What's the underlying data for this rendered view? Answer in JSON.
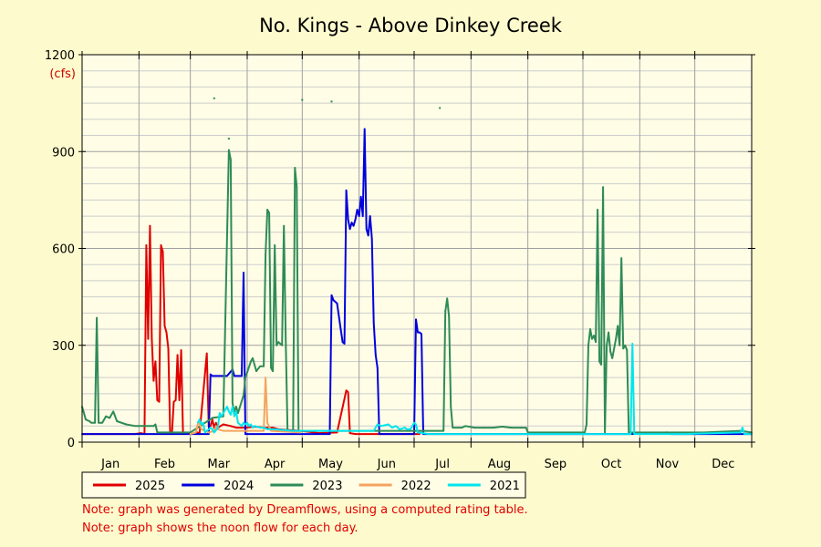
{
  "chart_data": {
    "type": "line",
    "title": "No. Kings - Above Dinkey Creek",
    "ylabel": "(cfs)",
    "xlabel": "",
    "x_unit": "day of year",
    "xlim": [
      1,
      366
    ],
    "ylim": [
      0,
      1200
    ],
    "y_ticks": [
      0,
      300,
      600,
      900,
      1200
    ],
    "month_labels": [
      "Jan",
      "Feb",
      "Mar",
      "Apr",
      "May",
      "Jun",
      "Jul",
      "Aug",
      "Sep",
      "Oct",
      "Nov",
      "Dec"
    ],
    "month_starts": [
      1,
      32,
      60,
      91,
      121,
      152,
      182,
      213,
      244,
      274,
      305,
      335
    ],
    "grid": true,
    "legend_position": "bottom-left",
    "series": [
      {
        "name": "2025",
        "color": "#e00000",
        "points": [
          [
            1,
            25
          ],
          [
            30,
            25
          ],
          [
            33,
            28
          ],
          [
            35,
            25
          ],
          [
            36,
            610
          ],
          [
            37,
            320
          ],
          [
            38,
            670
          ],
          [
            39,
            320
          ],
          [
            40,
            190
          ],
          [
            41,
            250
          ],
          [
            42,
            130
          ],
          [
            43,
            125
          ],
          [
            44,
            610
          ],
          [
            45,
            590
          ],
          [
            46,
            360
          ],
          [
            47,
            340
          ],
          [
            48,
            290
          ],
          [
            49,
            30
          ],
          [
            50,
            28
          ],
          [
            51,
            125
          ],
          [
            52,
            130
          ],
          [
            53,
            270
          ],
          [
            54,
            130
          ],
          [
            55,
            285
          ],
          [
            56,
            30
          ],
          [
            57,
            28
          ],
          [
            60,
            25
          ],
          [
            64,
            30
          ],
          [
            65,
            25
          ],
          [
            69,
            275
          ],
          [
            70,
            50
          ],
          [
            71,
            50
          ],
          [
            72,
            70
          ],
          [
            73,
            45
          ],
          [
            74,
            60
          ],
          [
            75,
            45
          ],
          [
            78,
            55
          ],
          [
            82,
            50
          ],
          [
            85,
            45
          ],
          [
            90,
            45
          ],
          [
            95,
            48
          ],
          [
            100,
            45
          ],
          [
            105,
            45
          ],
          [
            108,
            40
          ],
          [
            112,
            38
          ],
          [
            120,
            35
          ],
          [
            125,
            32
          ],
          [
            130,
            28
          ],
          [
            140,
            30
          ],
          [
            145,
            160
          ],
          [
            146,
            155
          ],
          [
            147,
            28
          ],
          [
            150,
            25
          ],
          [
            170,
            25
          ],
          [
            182,
            25
          ],
          [
            185,
            25
          ]
        ]
      },
      {
        "name": "2024",
        "color": "#0000dd",
        "points": [
          [
            1,
            25
          ],
          [
            40,
            25
          ],
          [
            50,
            25
          ],
          [
            60,
            25
          ],
          [
            70,
            25
          ],
          [
            71,
            210
          ],
          [
            72,
            205
          ],
          [
            80,
            205
          ],
          [
            83,
            225
          ],
          [
            84,
            205
          ],
          [
            88,
            205
          ],
          [
            89,
            525
          ],
          [
            90,
            25
          ],
          [
            100,
            25
          ],
          [
            120,
            25
          ],
          [
            136,
            25
          ],
          [
            137,
            455
          ],
          [
            138,
            440
          ],
          [
            140,
            430
          ],
          [
            142,
            350
          ],
          [
            143,
            310
          ],
          [
            144,
            305
          ],
          [
            145,
            780
          ],
          [
            146,
            690
          ],
          [
            147,
            660
          ],
          [
            148,
            680
          ],
          [
            149,
            670
          ],
          [
            150,
            690
          ],
          [
            151,
            720
          ],
          [
            152,
            700
          ],
          [
            153,
            760
          ],
          [
            154,
            700
          ],
          [
            155,
            970
          ],
          [
            156,
            660
          ],
          [
            157,
            640
          ],
          [
            158,
            700
          ],
          [
            159,
            630
          ],
          [
            160,
            370
          ],
          [
            161,
            270
          ],
          [
            162,
            230
          ],
          [
            163,
            25
          ],
          [
            175,
            25
          ],
          [
            182,
            25
          ],
          [
            183,
            380
          ],
          [
            184,
            340
          ],
          [
            185,
            340
          ],
          [
            186,
            335
          ],
          [
            187,
            25
          ],
          [
            200,
            25
          ],
          [
            240,
            25
          ],
          [
            260,
            25
          ],
          [
            300,
            25
          ],
          [
            320,
            30
          ],
          [
            322,
            25
          ],
          [
            340,
            25
          ],
          [
            366,
            25
          ]
        ]
      },
      {
        "name": "2023",
        "color": "#2e8b57",
        "points": [
          [
            1,
            110
          ],
          [
            3,
            70
          ],
          [
            5,
            65
          ],
          [
            6,
            60
          ],
          [
            8,
            60
          ],
          [
            9,
            385
          ],
          [
            10,
            60
          ],
          [
            12,
            60
          ],
          [
            14,
            80
          ],
          [
            16,
            75
          ],
          [
            18,
            95
          ],
          [
            20,
            65
          ],
          [
            25,
            55
          ],
          [
            30,
            50
          ],
          [
            40,
            50
          ],
          [
            41,
            55
          ],
          [
            42,
            30
          ],
          [
            60,
            30
          ],
          [
            72,
            75
          ],
          [
            78,
            80
          ],
          [
            81,
            905
          ],
          [
            82,
            875
          ],
          [
            83,
            120
          ],
          [
            84,
            95
          ],
          [
            85,
            110
          ],
          [
            86,
            90
          ],
          [
            89,
            145
          ],
          [
            90,
            200
          ],
          [
            93,
            250
          ],
          [
            94,
            260
          ],
          [
            96,
            220
          ],
          [
            98,
            235
          ],
          [
            100,
            235
          ],
          [
            101,
            580
          ],
          [
            102,
            720
          ],
          [
            103,
            710
          ],
          [
            104,
            230
          ],
          [
            105,
            220
          ],
          [
            106,
            610
          ],
          [
            107,
            300
          ],
          [
            108,
            310
          ],
          [
            110,
            300
          ],
          [
            111,
            670
          ],
          [
            112,
            320
          ],
          [
            113,
            35
          ],
          [
            116,
            35
          ],
          [
            117,
            850
          ],
          [
            118,
            790
          ],
          [
            119,
            35
          ],
          [
            130,
            35
          ],
          [
            170,
            35
          ],
          [
            185,
            35
          ],
          [
            198,
            35
          ],
          [
            199,
            405
          ],
          [
            200,
            445
          ],
          [
            201,
            390
          ],
          [
            202,
            110
          ],
          [
            203,
            45
          ],
          [
            208,
            45
          ],
          [
            210,
            50
          ],
          [
            215,
            45
          ],
          [
            220,
            45
          ],
          [
            225,
            45
          ],
          [
            230,
            48
          ],
          [
            235,
            45
          ],
          [
            240,
            45
          ],
          [
            243,
            45
          ],
          [
            244,
            30
          ],
          [
            260,
            30
          ],
          [
            275,
            30
          ],
          [
            276,
            55
          ],
          [
            277,
            300
          ],
          [
            278,
            350
          ],
          [
            279,
            320
          ],
          [
            280,
            330
          ],
          [
            281,
            310
          ],
          [
            282,
            720
          ],
          [
            283,
            250
          ],
          [
            284,
            240
          ],
          [
            285,
            790
          ],
          [
            286,
            30
          ],
          [
            287,
            300
          ],
          [
            288,
            340
          ],
          [
            289,
            280
          ],
          [
            290,
            260
          ],
          [
            292,
            320
          ],
          [
            293,
            360
          ],
          [
            294,
            300
          ],
          [
            295,
            570
          ],
          [
            296,
            290
          ],
          [
            297,
            300
          ],
          [
            298,
            285
          ],
          [
            299,
            30
          ],
          [
            310,
            30
          ],
          [
            340,
            30
          ],
          [
            360,
            35
          ],
          [
            366,
            30
          ]
        ]
      },
      {
        "name": "2022",
        "color": "#f4a460",
        "points": [
          [
            60,
            25
          ],
          [
            63,
            30
          ],
          [
            64,
            55
          ],
          [
            65,
            60
          ],
          [
            66,
            40
          ],
          [
            70,
            30
          ],
          [
            73,
            35
          ],
          [
            74,
            50
          ],
          [
            75,
            40
          ],
          [
            78,
            35
          ],
          [
            100,
            35
          ],
          [
            101,
            200
          ],
          [
            102,
            60
          ],
          [
            104,
            35
          ],
          [
            120,
            30
          ]
        ]
      },
      {
        "name": "2021",
        "color": "#00e5ee",
        "points": [
          [
            64,
            60
          ],
          [
            65,
            70
          ],
          [
            66,
            55
          ],
          [
            67,
            60
          ],
          [
            68,
            30
          ],
          [
            71,
            45
          ],
          [
            72,
            40
          ],
          [
            73,
            30
          ],
          [
            75,
            45
          ],
          [
            76,
            90
          ],
          [
            77,
            80
          ],
          [
            78,
            90
          ],
          [
            79,
            100
          ],
          [
            80,
            110
          ],
          [
            81,
            95
          ],
          [
            82,
            85
          ],
          [
            83,
            110
          ],
          [
            84,
            80
          ],
          [
            85,
            95
          ],
          [
            86,
            60
          ],
          [
            87,
            55
          ],
          [
            88,
            50
          ],
          [
            89,
            60
          ],
          [
            90,
            55
          ],
          [
            91,
            60
          ],
          [
            92,
            50
          ],
          [
            93,
            55
          ],
          [
            94,
            45
          ],
          [
            95,
            50
          ],
          [
            98,
            45
          ],
          [
            100,
            45
          ],
          [
            102,
            40
          ],
          [
            105,
            40
          ],
          [
            110,
            38
          ],
          [
            116,
            35
          ],
          [
            120,
            35
          ],
          [
            160,
            35
          ],
          [
            162,
            55
          ],
          [
            164,
            50
          ],
          [
            168,
            55
          ],
          [
            170,
            45
          ],
          [
            172,
            50
          ],
          [
            174,
            40
          ],
          [
            177,
            45
          ],
          [
            178,
            40
          ],
          [
            180,
            40
          ],
          [
            182,
            60
          ],
          [
            183,
            55
          ],
          [
            184,
            30
          ],
          [
            190,
            25
          ],
          [
            300,
            25
          ],
          [
            301,
            305
          ],
          [
            302,
            25
          ],
          [
            320,
            25
          ],
          [
            330,
            25
          ],
          [
            360,
            30
          ],
          [
            361,
            45
          ],
          [
            362,
            25
          ],
          [
            366,
            25
          ]
        ]
      }
    ],
    "scatter_points": [
      {
        "color": "#2e8b57",
        "points": [
          [
            73,
            1065
          ],
          [
            81,
            940
          ],
          [
            121,
            1060
          ],
          [
            137,
            1055
          ],
          [
            196,
            1035
          ]
        ]
      }
    ]
  },
  "notes": [
    "Note: graph was generated by Dreamflows, using a computed rating table.",
    "Note: graph shows the noon flow for each day."
  ]
}
